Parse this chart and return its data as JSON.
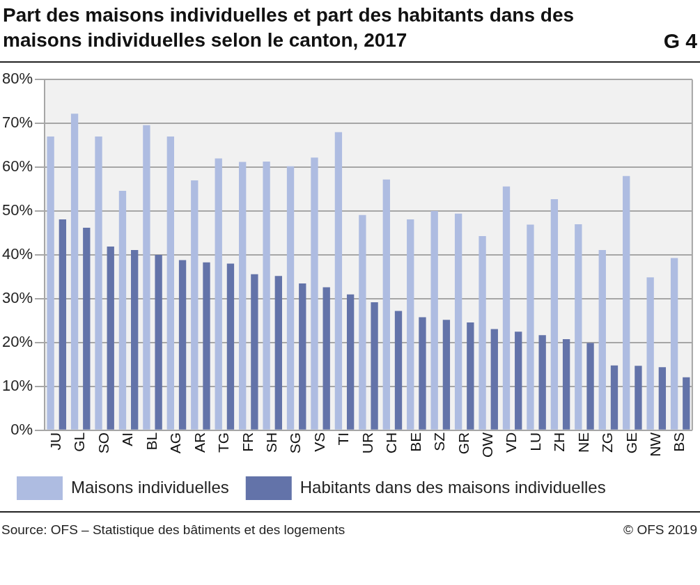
{
  "chart_data": {
    "type": "bar",
    "title": "Part des maisons individuelles et part des habitants dans des maisons individuelles selon le canton, 2017",
    "categories": [
      "JU",
      "GL",
      "SO",
      "AI",
      "BL",
      "AG",
      "AR",
      "TG",
      "FR",
      "SH",
      "SG",
      "VS",
      "TI",
      "UR",
      "CH",
      "BE",
      "SZ",
      "GR",
      "OW",
      "VD",
      "LU",
      "ZH",
      "NE",
      "ZG",
      "GE",
      "NW",
      "BS"
    ],
    "series": [
      {
        "name": "Maisons individuelles",
        "color": "#aebce1",
        "values": [
          67,
          72.2,
          67,
          54.6,
          69.6,
          67,
          57,
          62,
          61.2,
          61.3,
          60.2,
          62.2,
          68,
          49.1,
          57.2,
          48.1,
          50,
          49.4,
          44.3,
          55.6,
          46.9,
          52.7,
          47,
          41.1,
          58,
          34.9,
          39.3
        ]
      },
      {
        "name": "Habitants dans des maisons individuelles",
        "color": "#6373a9",
        "values": [
          48.1,
          46.2,
          41.9,
          41.1,
          40,
          38.8,
          38.3,
          38,
          35.6,
          35.2,
          33.5,
          32.6,
          31,
          29.2,
          27.2,
          25.8,
          25.2,
          24.6,
          23.1,
          22.5,
          21.7,
          20.8,
          19.9,
          14.8,
          14.7,
          14.4,
          12.1
        ]
      }
    ],
    "ylim": [
      0,
      80
    ],
    "yticks": [
      {
        "value": 0,
        "label": "0%"
      },
      {
        "value": 10,
        "label": "10%"
      },
      {
        "value": 20,
        "label": "20%"
      },
      {
        "value": 30,
        "label": "30%"
      },
      {
        "value": 40,
        "label": "40%"
      },
      {
        "value": 50,
        "label": "50%"
      },
      {
        "value": 60,
        "label": "60%"
      },
      {
        "value": 70,
        "label": "70%"
      },
      {
        "value": 80,
        "label": "80%"
      }
    ],
    "grid": "y",
    "legend": "bottom",
    "annotations": [
      "G 4",
      "Source: OFS – Statistique des bâtiments et des logements",
      "© OFS 2019"
    ]
  }
}
